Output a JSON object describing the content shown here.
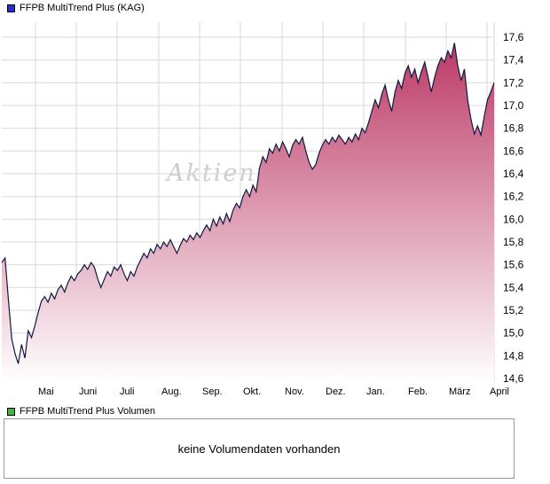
{
  "header": {
    "title": "FFPB MultiTrend Plus (KAG)",
    "legend_color": "#2b2bd4"
  },
  "watermark": "Aktien",
  "chart_data": {
    "type": "area",
    "title": "FFPB MultiTrend Plus (KAG)",
    "legend_position": "top-left",
    "grid": true,
    "x_tick_labels": [
      "Mai",
      "Juni",
      "Juli",
      "Aug.",
      "Sep.",
      "Okt.",
      "Nov.",
      "Dez.",
      "Jan.",
      "Feb.",
      "März",
      "April"
    ],
    "x_tick_pos": [
      0.0685,
      0.1514,
      0.2342,
      0.3189,
      0.4018,
      0.4847,
      0.5694,
      0.6523,
      0.7351,
      0.8198,
      0.9027,
      0.9856
    ],
    "y_ticks": [
      14.6,
      14.8,
      15.0,
      15.2,
      15.4,
      15.6,
      15.8,
      16.0,
      16.2,
      16.4,
      16.6,
      16.8,
      17.0,
      17.2,
      17.4,
      17.6
    ],
    "y_tick_labels": [
      "14,6",
      "14,8",
      "15,0",
      "15,2",
      "15,4",
      "15,6",
      "15,8",
      "16,0",
      "16,2",
      "16,4",
      "16,6",
      "16,8",
      "17,0",
      "17,2",
      "17,4",
      "17,6"
    ],
    "ylim": [
      14.55,
      17.72
    ],
    "values": [
      15.62,
      15.66,
      15.3,
      14.95,
      14.82,
      14.73,
      14.9,
      14.78,
      15.02,
      14.96,
      15.06,
      15.18,
      15.28,
      15.32,
      15.27,
      15.35,
      15.3,
      15.38,
      15.42,
      15.36,
      15.44,
      15.5,
      15.46,
      15.52,
      15.55,
      15.6,
      15.56,
      15.62,
      15.58,
      15.48,
      15.4,
      15.47,
      15.54,
      15.5,
      15.58,
      15.55,
      15.6,
      15.52,
      15.46,
      15.54,
      15.5,
      15.58,
      15.64,
      15.7,
      15.66,
      15.74,
      15.7,
      15.78,
      15.74,
      15.8,
      15.76,
      15.82,
      15.76,
      15.7,
      15.77,
      15.83,
      15.8,
      15.86,
      15.82,
      15.88,
      15.84,
      15.9,
      15.95,
      15.9,
      16.0,
      15.94,
      16.02,
      15.96,
      16.05,
      15.98,
      16.08,
      16.14,
      16.1,
      16.2,
      16.26,
      16.2,
      16.3,
      16.24,
      16.45,
      16.55,
      16.5,
      16.62,
      16.58,
      16.66,
      16.6,
      16.68,
      16.62,
      16.55,
      16.65,
      16.7,
      16.66,
      16.72,
      16.6,
      16.5,
      16.44,
      16.48,
      16.58,
      16.65,
      16.7,
      16.66,
      16.72,
      16.68,
      16.74,
      16.7,
      16.66,
      16.72,
      16.68,
      16.75,
      16.7,
      16.8,
      16.76,
      16.85,
      16.95,
      17.05,
      16.98,
      17.1,
      17.18,
      17.05,
      16.95,
      17.12,
      17.22,
      17.15,
      17.28,
      17.35,
      17.25,
      17.32,
      17.2,
      17.3,
      17.38,
      17.25,
      17.12,
      17.25,
      17.35,
      17.42,
      17.38,
      17.48,
      17.42,
      17.55,
      17.35,
      17.22,
      17.32,
      17.05,
      16.88,
      16.75,
      16.82,
      16.74,
      16.9,
      17.05,
      17.12,
      17.2
    ],
    "line_color": "#15153f",
    "fill_top": "#bc3a66",
    "fill_bottom": "#ffffff",
    "grid_color": "#d9d9d9"
  },
  "volume": {
    "title": "FFPB MultiTrend Plus Volumen",
    "legend_color": "#2fbf2f",
    "message": "keine Volumendaten vorhanden"
  }
}
